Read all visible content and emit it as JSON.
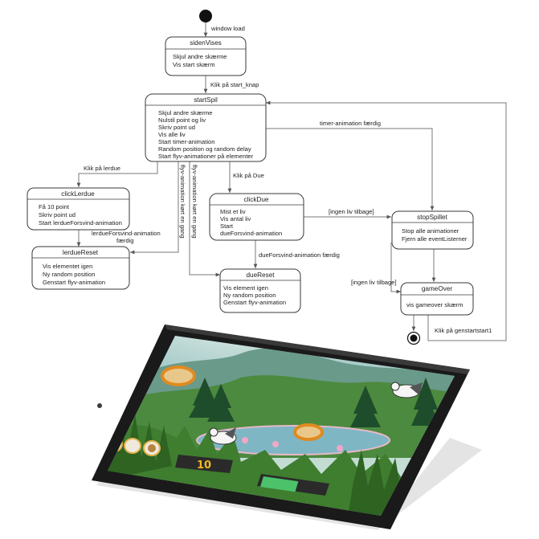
{
  "diagram": {
    "start_label": "window load",
    "states": {
      "sidenVises": {
        "title": "sidenVises",
        "lines": [
          "Skjul andre skærme",
          "Vis start skærm"
        ]
      },
      "startSpil": {
        "title": "startSpil",
        "lines": [
          "Skjul andre skærme",
          "Nulstil point og liv",
          "Skriv point ud",
          "Vis alle liv",
          "Start timer-animation",
          "Random position og random delay",
          "Start flyv-animationer på elementer"
        ]
      },
      "clickLerdue": {
        "title": "clickLerdue",
        "lines": [
          "Få 10 point",
          "Skriv point ud",
          "Start lerdueForsvind-animation"
        ]
      },
      "lerdueReset": {
        "title": "lerdueReset",
        "lines": [
          "Vis elementet igen",
          "Ny random position",
          "Genstart flyv-animation"
        ]
      },
      "clickDue": {
        "title": "clickDue",
        "lines": [
          "Mist et liv",
          "Vis antal liv",
          "Start",
          "dueForsvind-animation"
        ]
      },
      "dueReset": {
        "title": "dueReset",
        "lines": [
          "Vis element igen",
          "Ny random position",
          "Genstart flyv-animation"
        ]
      },
      "stopSpillet": {
        "title": "stopSpillet",
        "lines": [
          "Stop alle animationer",
          "Fjern alle eventListerner"
        ]
      },
      "gameOver": {
        "title": "gameOver",
        "lines": [
          "vis gameover skærm"
        ]
      }
    },
    "transitions": {
      "start_knap": "Klik på start_knap",
      "timer_done": "timer-animation færdig",
      "klik_lerdue": "Klik på lerdue",
      "klik_due": "Klik på Due",
      "flyv_lerdue": "flyv-animation kørt en gang",
      "flyv_due": "flyv-animation kørt en gang",
      "lerdue_forsvind_1": "lerdueForsvind-animation",
      "lerdue_forsvind_2": "færdig",
      "due_forsvind": "dueForsvind-animation færdig",
      "ingen_liv_1": "[ingen liv tilbage]",
      "ingen_liv_2": "[ingen liv tilbage]",
      "genstart": "Klik på genstartstart1"
    }
  },
  "tablet_game": {
    "score": "10",
    "lives_remaining": 1,
    "lives_total": 3,
    "timer_progress": 0.55,
    "colors": {
      "sky": "#a9cfd0",
      "grass": "#3f7d2f",
      "lake": "#7fb6c4",
      "timer": "#4cc36a"
    }
  }
}
